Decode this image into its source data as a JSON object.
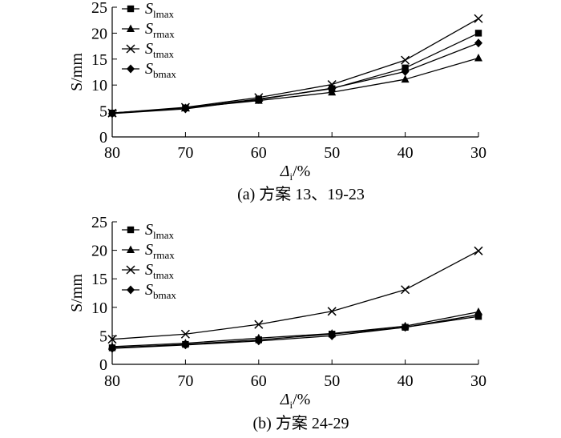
{
  "chart_data": [
    {
      "type": "line",
      "panel": "a",
      "caption": "(a) 方案 13、19-23",
      "x": [
        80,
        70,
        60,
        50,
        40,
        30
      ],
      "xlim": [
        80,
        30
      ],
      "ylim": [
        0,
        25
      ],
      "xlabel": {
        "main": "Δ",
        "sub": "i",
        "suffix": "/%"
      },
      "ylabel": "S/mm",
      "xticks": [
        "80",
        "70",
        "60",
        "50",
        "40",
        "30"
      ],
      "yticks": [
        "0",
        "5",
        "10",
        "15",
        "20",
        "25"
      ],
      "legend_position": "top-left",
      "series": [
        {
          "name": "S",
          "sub": "lmax",
          "marker": "square",
          "values": [
            4.6,
            5.6,
            7.3,
            9.3,
            13.3,
            20.0
          ]
        },
        {
          "name": "S",
          "sub": "rmax",
          "marker": "triangle",
          "values": [
            4.6,
            5.6,
            7.0,
            8.6,
            11.1,
            15.2
          ]
        },
        {
          "name": "S",
          "sub": "tmax",
          "marker": "x",
          "values": [
            4.6,
            5.7,
            7.6,
            10.1,
            14.8,
            22.8
          ]
        },
        {
          "name": "S",
          "sub": "bmax",
          "marker": "diamond",
          "values": [
            4.5,
            5.4,
            7.2,
            9.4,
            12.6,
            18.1
          ]
        }
      ]
    },
    {
      "type": "line",
      "panel": "b",
      "caption": "(b) 方案 24-29",
      "x": [
        80,
        70,
        60,
        50,
        40,
        30
      ],
      "xlim": [
        80,
        30
      ],
      "ylim": [
        0,
        25
      ],
      "xlabel": {
        "main": "Δ",
        "sub": "i",
        "suffix": "/%"
      },
      "ylabel": "S/mm",
      "xticks": [
        "80",
        "70",
        "60",
        "50",
        "40",
        "30"
      ],
      "yticks": [
        "0",
        "5",
        "10",
        "15",
        "20",
        "25"
      ],
      "legend_position": "top-left",
      "series": [
        {
          "name": "S",
          "sub": "lmax",
          "marker": "square",
          "values": [
            2.9,
            3.5,
            4.3,
            5.3,
            6.5,
            8.4
          ]
        },
        {
          "name": "S",
          "sub": "rmax",
          "marker": "triangle",
          "values": [
            3.1,
            3.7,
            4.6,
            5.4,
            6.7,
            9.2
          ]
        },
        {
          "name": "S",
          "sub": "tmax",
          "marker": "x",
          "values": [
            4.4,
            5.3,
            7.0,
            9.3,
            13.1,
            19.9
          ]
        },
        {
          "name": "S",
          "sub": "bmax",
          "marker": "diamond",
          "values": [
            2.8,
            3.4,
            4.1,
            5.0,
            6.5,
            8.7
          ]
        }
      ]
    }
  ]
}
